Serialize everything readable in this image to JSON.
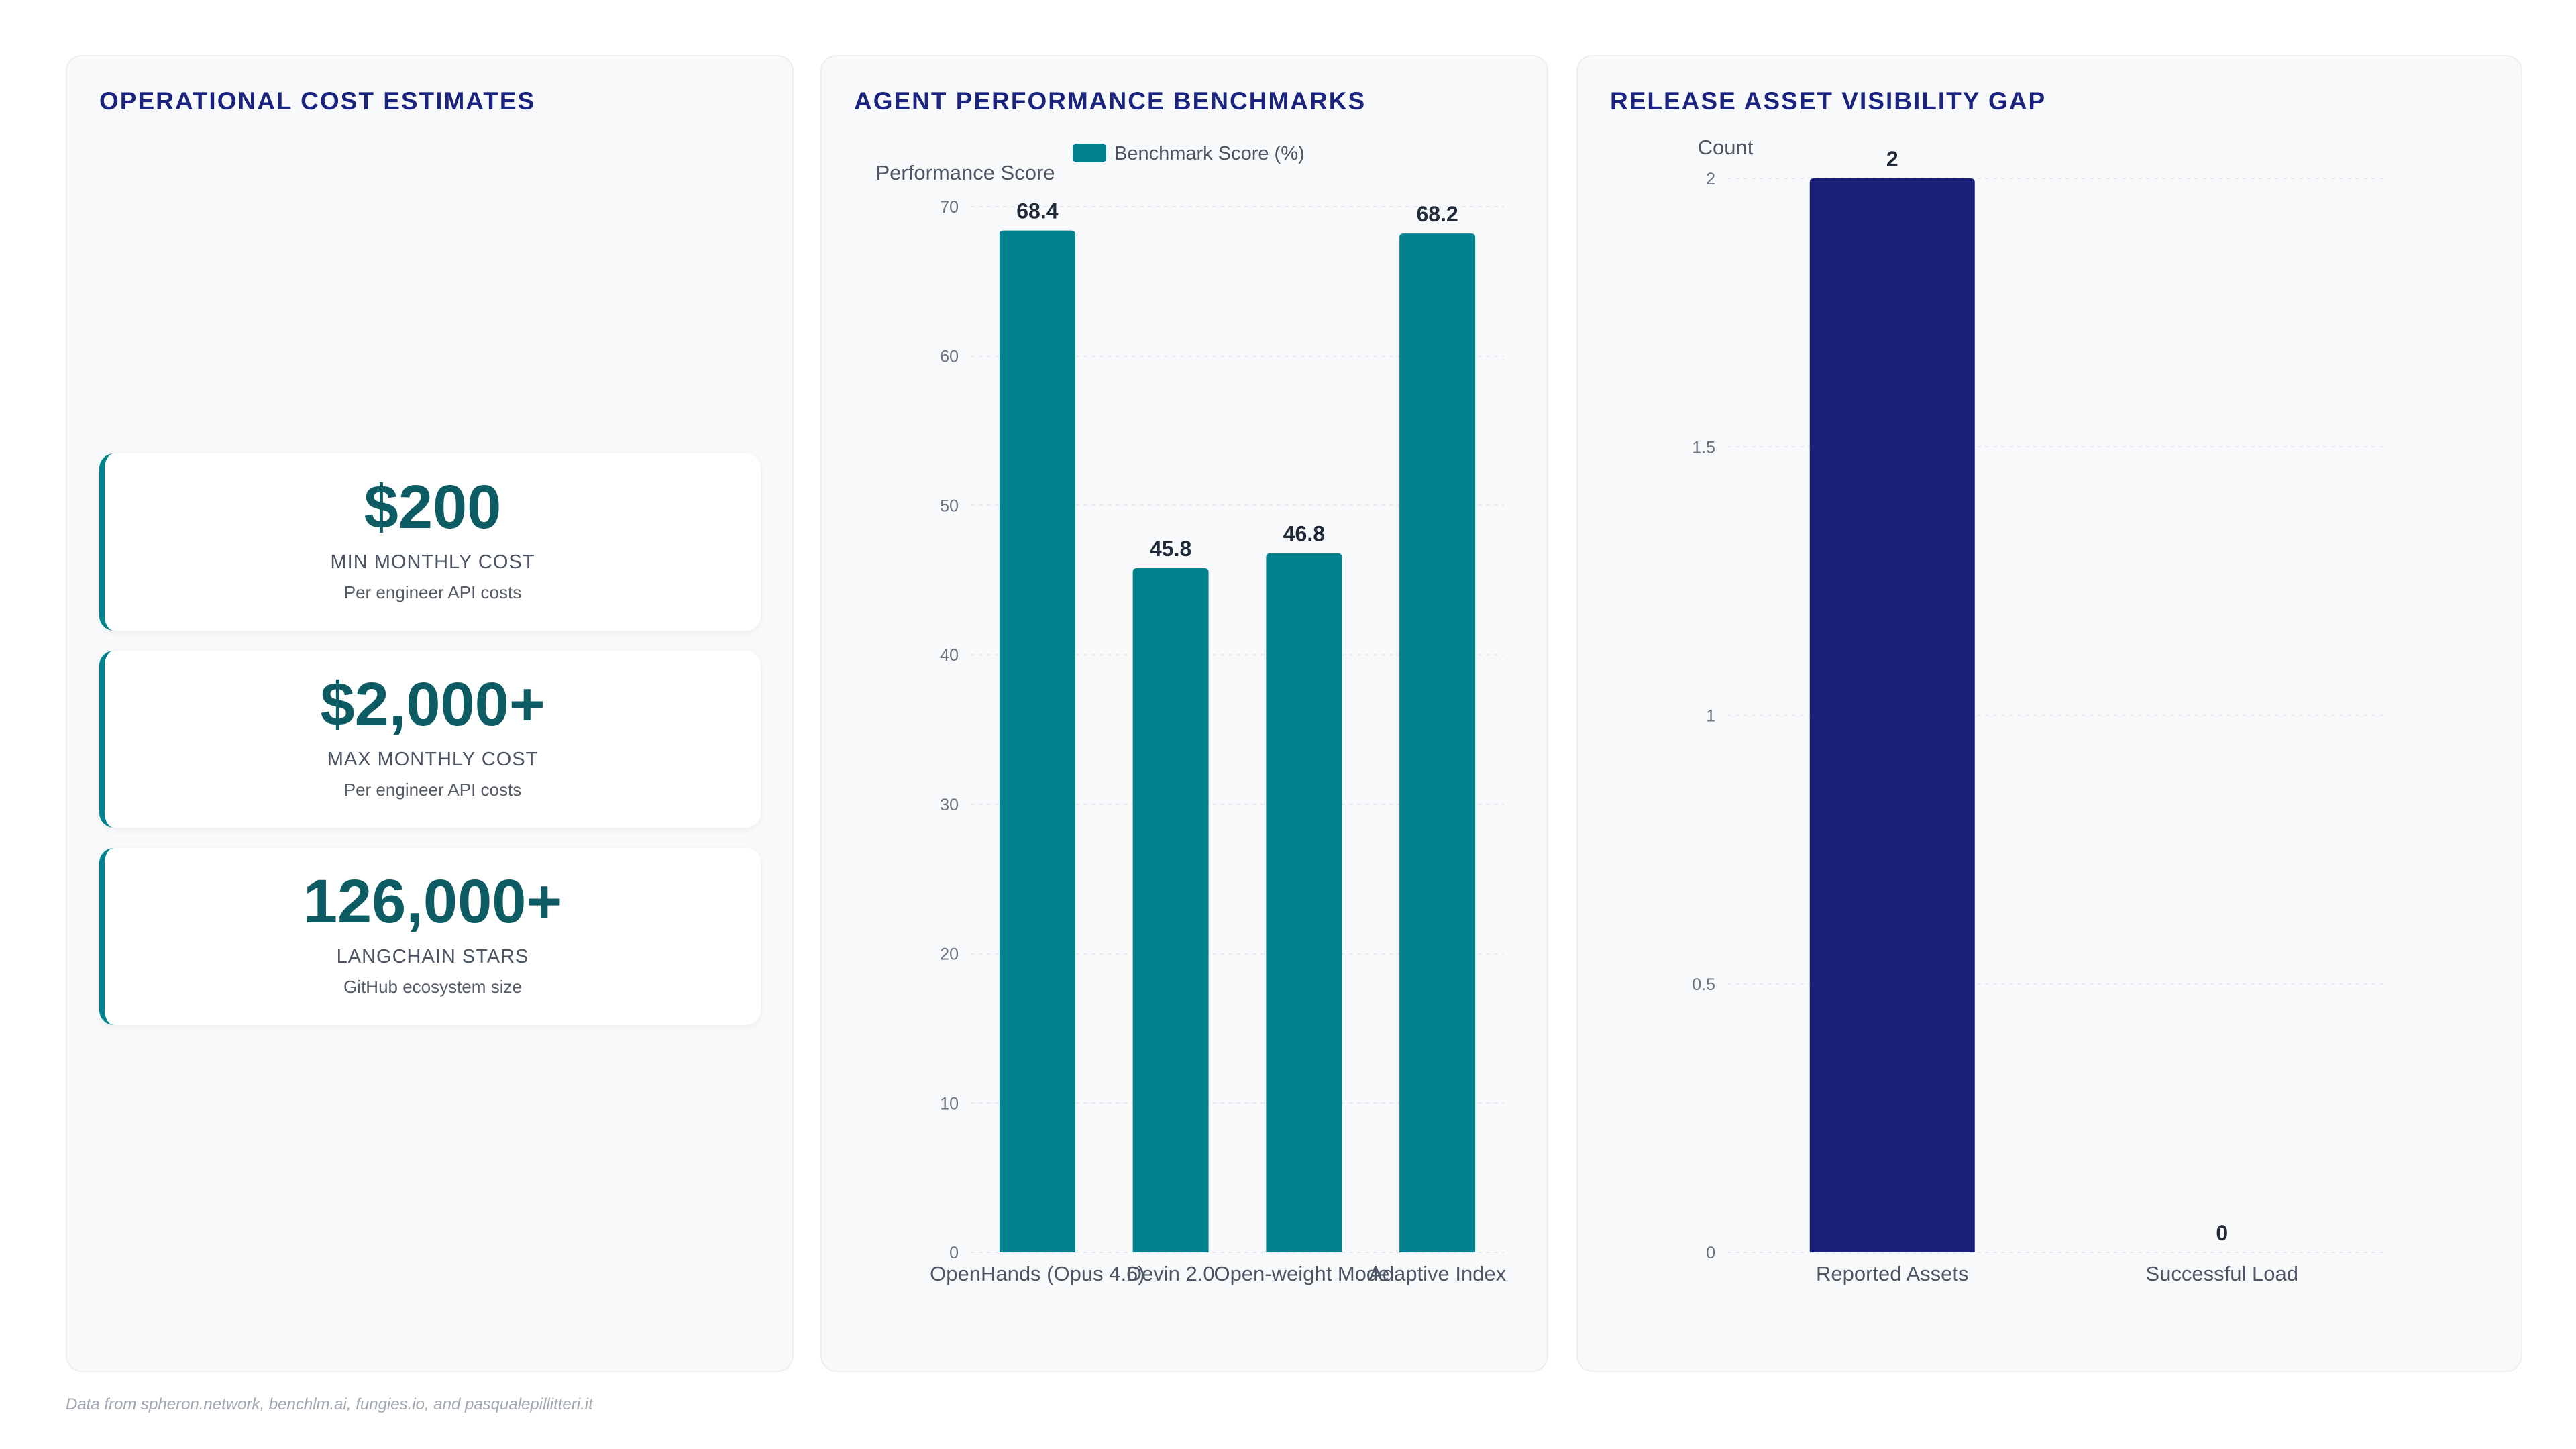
{
  "cost_panel": {
    "title": "OPERATIONAL COST ESTIMATES",
    "stats": [
      {
        "value": "$200",
        "label": "MIN MONTHLY COST",
        "sub": "Per engineer API costs"
      },
      {
        "value": "$2,000+",
        "label": "MAX MONTHLY COST",
        "sub": "Per engineer API costs"
      },
      {
        "value": "126,000+",
        "label": "LANGCHAIN STARS",
        "sub": "GitHub ecosystem size"
      }
    ]
  },
  "bench_panel": {
    "title": "AGENT PERFORMANCE BENCHMARKS"
  },
  "release_panel": {
    "title": "RELEASE ASSET VISIBILITY GAP"
  },
  "footer": "Data from spheron.network, benchlm.ai, fungies.io, and pasqualepillitteri.it",
  "chart_data": [
    {
      "type": "bar",
      "categories": [
        "OpenHands (Opus 4.6)",
        "Devin 2.0",
        "Open-weight Model",
        "Adaptive Index"
      ],
      "series": [
        {
          "name": "Benchmark Score (%)",
          "values": [
            68.4,
            45.8,
            46.8,
            68.2
          ]
        }
      ],
      "ylabel": "Performance Score",
      "ylim": [
        0,
        70
      ],
      "yticks": [
        0,
        10,
        20,
        30,
        40,
        50,
        60,
        70
      ],
      "legend": "top",
      "grid": true,
      "color": "#00838f"
    },
    {
      "type": "bar",
      "categories": [
        "Reported Assets",
        "Successful Load"
      ],
      "values": [
        2,
        0
      ],
      "ylabel": "Count",
      "ylim": [
        0,
        2
      ],
      "yticks": [
        0,
        0.5,
        1,
        1.5,
        2
      ],
      "grid": true,
      "color": "#1a1f7a"
    }
  ]
}
